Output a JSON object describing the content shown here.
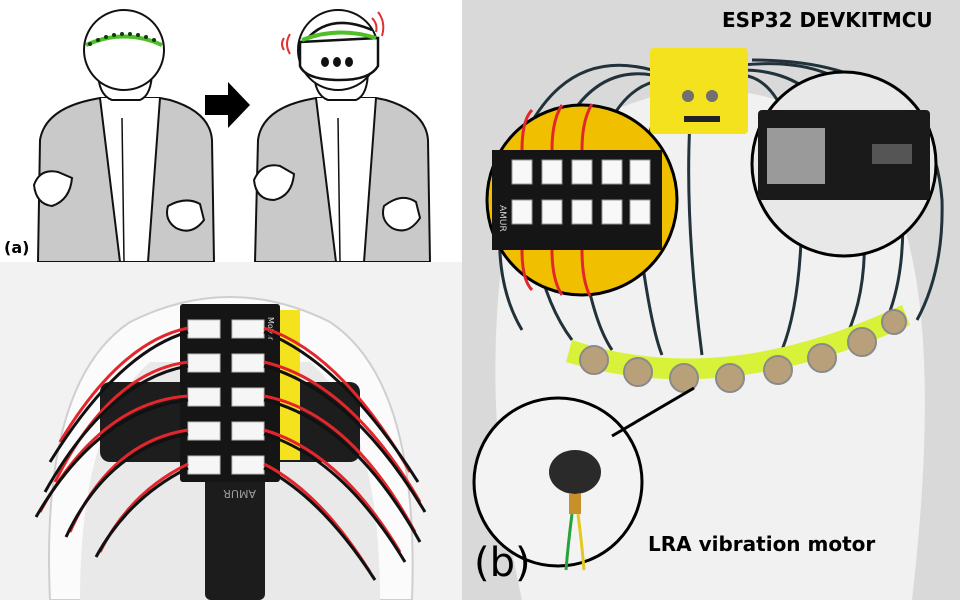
{
  "panel_a": {
    "label": "(a)"
  },
  "panel_a_bottom": {
    "pcb_text": "Motor",
    "strap_text": "AMUR"
  },
  "panel_b": {
    "label": "(b)",
    "board_title": "ESP32 DEVKITMCU",
    "motor_caption": "LRA vibration motor",
    "pcb_text": "AMUR"
  },
  "colors": {
    "jacket": "#c9c9c9",
    "led_green": "#4fbf27",
    "signal_red": "#e3262b",
    "enclosure_yellow": "#f4e21e",
    "motor_holder": "#d8f23a",
    "pcb": "#151515",
    "wire": "#22323a",
    "arrow": "#000000",
    "vibration_red": "#e03030"
  }
}
